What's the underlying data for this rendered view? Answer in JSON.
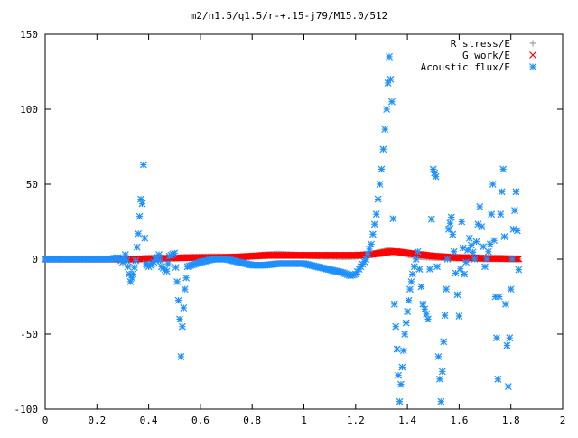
{
  "chart_data": {
    "type": "scatter",
    "title": "m2/n1.5/q1.5/r-+.15-j79/M15.0/512",
    "xlabel": "",
    "ylabel": "",
    "xlim": [
      0,
      2
    ],
    "ylim": [
      -100,
      150
    ],
    "grid": false,
    "legend_position": "top-right",
    "x_ticks": [
      "0",
      "0.2",
      "0.4",
      "0.6",
      "0.8",
      "1",
      "1.2",
      "1.4",
      "1.6",
      "1.8",
      "2"
    ],
    "y_ticks": [
      "-100",
      "-50",
      "0",
      "50",
      "100",
      "150"
    ],
    "x_tick_values": [
      0,
      0.2,
      0.4,
      0.6,
      0.8,
      1.0,
      1.2,
      1.4,
      1.6,
      1.8,
      2.0
    ],
    "y_tick_values": [
      -100,
      -50,
      0,
      50,
      100,
      150
    ],
    "series": [
      {
        "name": "R stress/E",
        "marker": "plus",
        "color": "#a0a0a0",
        "points": [
          [
            0.0,
            0
          ],
          [
            0.05,
            0
          ],
          [
            0.1,
            0
          ],
          [
            0.15,
            0
          ],
          [
            0.2,
            0
          ],
          [
            0.25,
            0
          ],
          [
            0.3,
            0
          ],
          [
            0.35,
            0
          ],
          [
            0.4,
            0
          ],
          [
            0.45,
            0.5
          ],
          [
            0.5,
            0.8
          ],
          [
            0.55,
            1.2
          ],
          [
            0.6,
            1.5
          ],
          [
            0.65,
            1.8
          ],
          [
            0.7,
            1.5
          ],
          [
            0.75,
            1.2
          ],
          [
            0.8,
            2.0
          ],
          [
            0.85,
            3.0
          ],
          [
            0.9,
            3.5
          ],
          [
            0.95,
            3.0
          ],
          [
            1.0,
            2.5
          ],
          [
            1.05,
            2.0
          ],
          [
            1.1,
            1.8
          ],
          [
            1.15,
            1.5
          ],
          [
            1.2,
            1.8
          ],
          [
            1.25,
            3.0
          ],
          [
            1.3,
            5.0
          ],
          [
            1.33,
            6.0
          ],
          [
            1.36,
            5.0
          ],
          [
            1.4,
            3.0
          ],
          [
            1.45,
            1.5
          ],
          [
            1.5,
            1.0
          ],
          [
            1.55,
            0.8
          ],
          [
            1.6,
            0.5
          ],
          [
            1.65,
            0.3
          ],
          [
            1.7,
            0.2
          ],
          [
            1.75,
            0.1
          ],
          [
            1.8,
            0.1
          ],
          [
            1.83,
            0
          ]
        ]
      },
      {
        "name": "G work/E",
        "marker": "cross",
        "color": "#ff0000",
        "points": [
          [
            0.0,
            0
          ],
          [
            0.05,
            0
          ],
          [
            0.1,
            0
          ],
          [
            0.15,
            0
          ],
          [
            0.2,
            0
          ],
          [
            0.25,
            0
          ],
          [
            0.3,
            0
          ],
          [
            0.35,
            0
          ],
          [
            0.4,
            0.5
          ],
          [
            0.45,
            0.5
          ],
          [
            0.5,
            0.8
          ],
          [
            0.55,
            1.0
          ],
          [
            0.6,
            1.0
          ],
          [
            0.65,
            1.0
          ],
          [
            0.7,
            1.2
          ],
          [
            0.75,
            1.5
          ],
          [
            0.8,
            2.0
          ],
          [
            0.85,
            2.5
          ],
          [
            0.9,
            2.5
          ],
          [
            0.95,
            2.5
          ],
          [
            1.0,
            2.5
          ],
          [
            1.05,
            2.5
          ],
          [
            1.1,
            2.5
          ],
          [
            1.15,
            2.5
          ],
          [
            1.2,
            2.5
          ],
          [
            1.25,
            3.0
          ],
          [
            1.3,
            4.0
          ],
          [
            1.33,
            5.0
          ],
          [
            1.36,
            5.0
          ],
          [
            1.4,
            4.0
          ],
          [
            1.45,
            3.0
          ],
          [
            1.5,
            2.0
          ],
          [
            1.55,
            1.5
          ],
          [
            1.6,
            1.0
          ],
          [
            1.65,
            1.0
          ],
          [
            1.7,
            0.5
          ],
          [
            1.75,
            0.5
          ],
          [
            1.8,
            0.3
          ],
          [
            1.83,
            0.2
          ]
        ]
      },
      {
        "name": "Acoustic flux/E",
        "marker": "star",
        "color": "#1e90ff",
        "points": [
          [
            0.0,
            0
          ],
          [
            0.05,
            0
          ],
          [
            0.1,
            0
          ],
          [
            0.15,
            0
          ],
          [
            0.2,
            0
          ],
          [
            0.25,
            0
          ],
          [
            0.28,
            1
          ],
          [
            0.3,
            -2
          ],
          [
            0.31,
            3
          ],
          [
            0.32,
            -5
          ],
          [
            0.33,
            -15
          ],
          [
            0.34,
            -10
          ],
          [
            0.35,
            -1
          ],
          [
            0.36,
            17
          ],
          [
            0.37,
            40
          ],
          [
            0.375,
            37
          ],
          [
            0.38,
            63
          ],
          [
            0.385,
            14
          ],
          [
            0.39,
            -3
          ],
          [
            0.4,
            -5
          ],
          [
            0.42,
            -2
          ],
          [
            0.44,
            3
          ],
          [
            0.45,
            -5
          ],
          [
            0.47,
            -8
          ],
          [
            0.48,
            2
          ],
          [
            0.5,
            4
          ],
          [
            0.51,
            -15
          ],
          [
            0.52,
            -40
          ],
          [
            0.525,
            -65
          ],
          [
            0.53,
            -45
          ],
          [
            0.54,
            -20
          ],
          [
            0.55,
            -5
          ],
          [
            0.6,
            -2
          ],
          [
            0.65,
            0
          ],
          [
            0.7,
            0
          ],
          [
            0.75,
            -2
          ],
          [
            0.8,
            -4
          ],
          [
            0.85,
            -4
          ],
          [
            0.9,
            -3
          ],
          [
            0.95,
            -3
          ],
          [
            1.0,
            -3
          ],
          [
            1.05,
            -5
          ],
          [
            1.1,
            -7
          ],
          [
            1.15,
            -9
          ],
          [
            1.18,
            -11
          ],
          [
            1.2,
            -10
          ],
          [
            1.22,
            -5
          ],
          [
            1.24,
            0
          ],
          [
            1.26,
            10
          ],
          [
            1.28,
            30
          ],
          [
            1.3,
            60
          ],
          [
            1.32,
            100
          ],
          [
            1.33,
            135
          ],
          [
            1.34,
            105
          ],
          [
            1.345,
            27
          ],
          [
            1.35,
            -30
          ],
          [
            1.36,
            -60
          ],
          [
            1.37,
            -95
          ],
          [
            1.38,
            -72
          ],
          [
            1.39,
            -50
          ],
          [
            1.4,
            -35
          ],
          [
            1.41,
            -20
          ],
          [
            1.42,
            -10
          ],
          [
            1.44,
            5
          ],
          [
            1.46,
            -30
          ],
          [
            1.48,
            -40
          ],
          [
            1.5,
            60
          ],
          [
            1.51,
            55
          ],
          [
            1.52,
            -65
          ],
          [
            1.53,
            -95
          ],
          [
            1.54,
            -55
          ],
          [
            1.55,
            -20
          ],
          [
            1.56,
            20
          ],
          [
            1.57,
            28
          ],
          [
            1.58,
            5
          ],
          [
            1.6,
            -38
          ],
          [
            1.61,
            25
          ],
          [
            1.62,
            -10
          ],
          [
            1.64,
            14
          ],
          [
            1.66,
            0
          ],
          [
            1.68,
            35
          ],
          [
            1.7,
            -5
          ],
          [
            1.72,
            10
          ],
          [
            1.73,
            50
          ],
          [
            1.74,
            -25
          ],
          [
            1.75,
            -80
          ],
          [
            1.76,
            30
          ],
          [
            1.77,
            60
          ],
          [
            1.78,
            -30
          ],
          [
            1.79,
            -85
          ],
          [
            1.8,
            -20
          ],
          [
            1.81,
            20
          ],
          [
            1.82,
            45
          ],
          [
            1.83,
            -7
          ]
        ]
      }
    ]
  }
}
